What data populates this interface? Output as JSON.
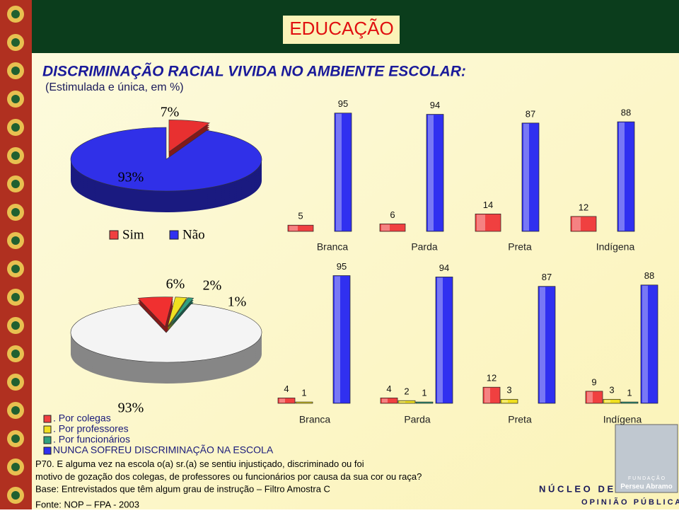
{
  "header": {
    "section": "EDUCAÇÃO",
    "title": "DISCRIMINAÇÃO RACIAL VIVIDA NO AMBIENTE ESCOLAR:",
    "subtitle": "(Estimulada e única, em %)"
  },
  "chart_data": [
    {
      "type": "pie",
      "values": [
        7,
        93
      ],
      "value_labels": [
        "7%",
        "93%"
      ],
      "colors": [
        "#e83030",
        "#3030e8"
      ]
    },
    {
      "type": "bar",
      "categories": [
        "Branca",
        "Parda",
        "Preta",
        "Indígena"
      ],
      "series": [
        {
          "name": "Sim",
          "color": "#f04040",
          "values": [
            5,
            6,
            14,
            12
          ]
        },
        {
          "name": "Não",
          "color": "#3030f0",
          "values": [
            95,
            94,
            87,
            88
          ]
        }
      ]
    },
    {
      "type": "pie",
      "values": [
        93,
        6,
        2,
        1
      ],
      "value_labels": [
        "93%",
        "6%",
        "2%",
        "1%"
      ],
      "colors": [
        "#f4f4f4",
        "#f03030",
        "#f0e020",
        "#30a080"
      ]
    },
    {
      "type": "bar",
      "categories": [
        "Branca",
        "Parda",
        "Preta",
        "Indígena"
      ],
      "series": [
        {
          "name": ". Por colegas",
          "color": "#f04040",
          "values": [
            4,
            4,
            12,
            9
          ]
        },
        {
          "name": ". Por professores",
          "color": "#f0e020",
          "values": [
            1,
            2,
            3,
            3
          ]
        },
        {
          "name": ". Por funcionários",
          "color": "#30a080",
          "values": [
            null,
            1,
            null,
            1
          ]
        },
        {
          "name": "NUNCA SOFREU DISCRIMINAÇÃO NA ESCOLA",
          "color": "#3030f0",
          "values": [
            95,
            94,
            87,
            88
          ]
        }
      ]
    }
  ],
  "footer": {
    "question": "P70. E alguma vez na escola o(a) sr.(a) se sentiu injustiçado, discriminado ou foi motivo de gozação dos colegas, de professores ou funcionários por causa da sua cor ou raça?",
    "base": "Base: Entrevistados que têm algum grau de instrução – Filtro Amostra C",
    "source": "Fonte: NOP – FPA - 2003"
  },
  "logo": {
    "line1": "N Ú C L E O   D E",
    "line2": "O P I N I Ã O   P Ú B L I C A",
    "org1": "F U N D A Ç Ã O",
    "org2": "Perseu Abramo"
  }
}
